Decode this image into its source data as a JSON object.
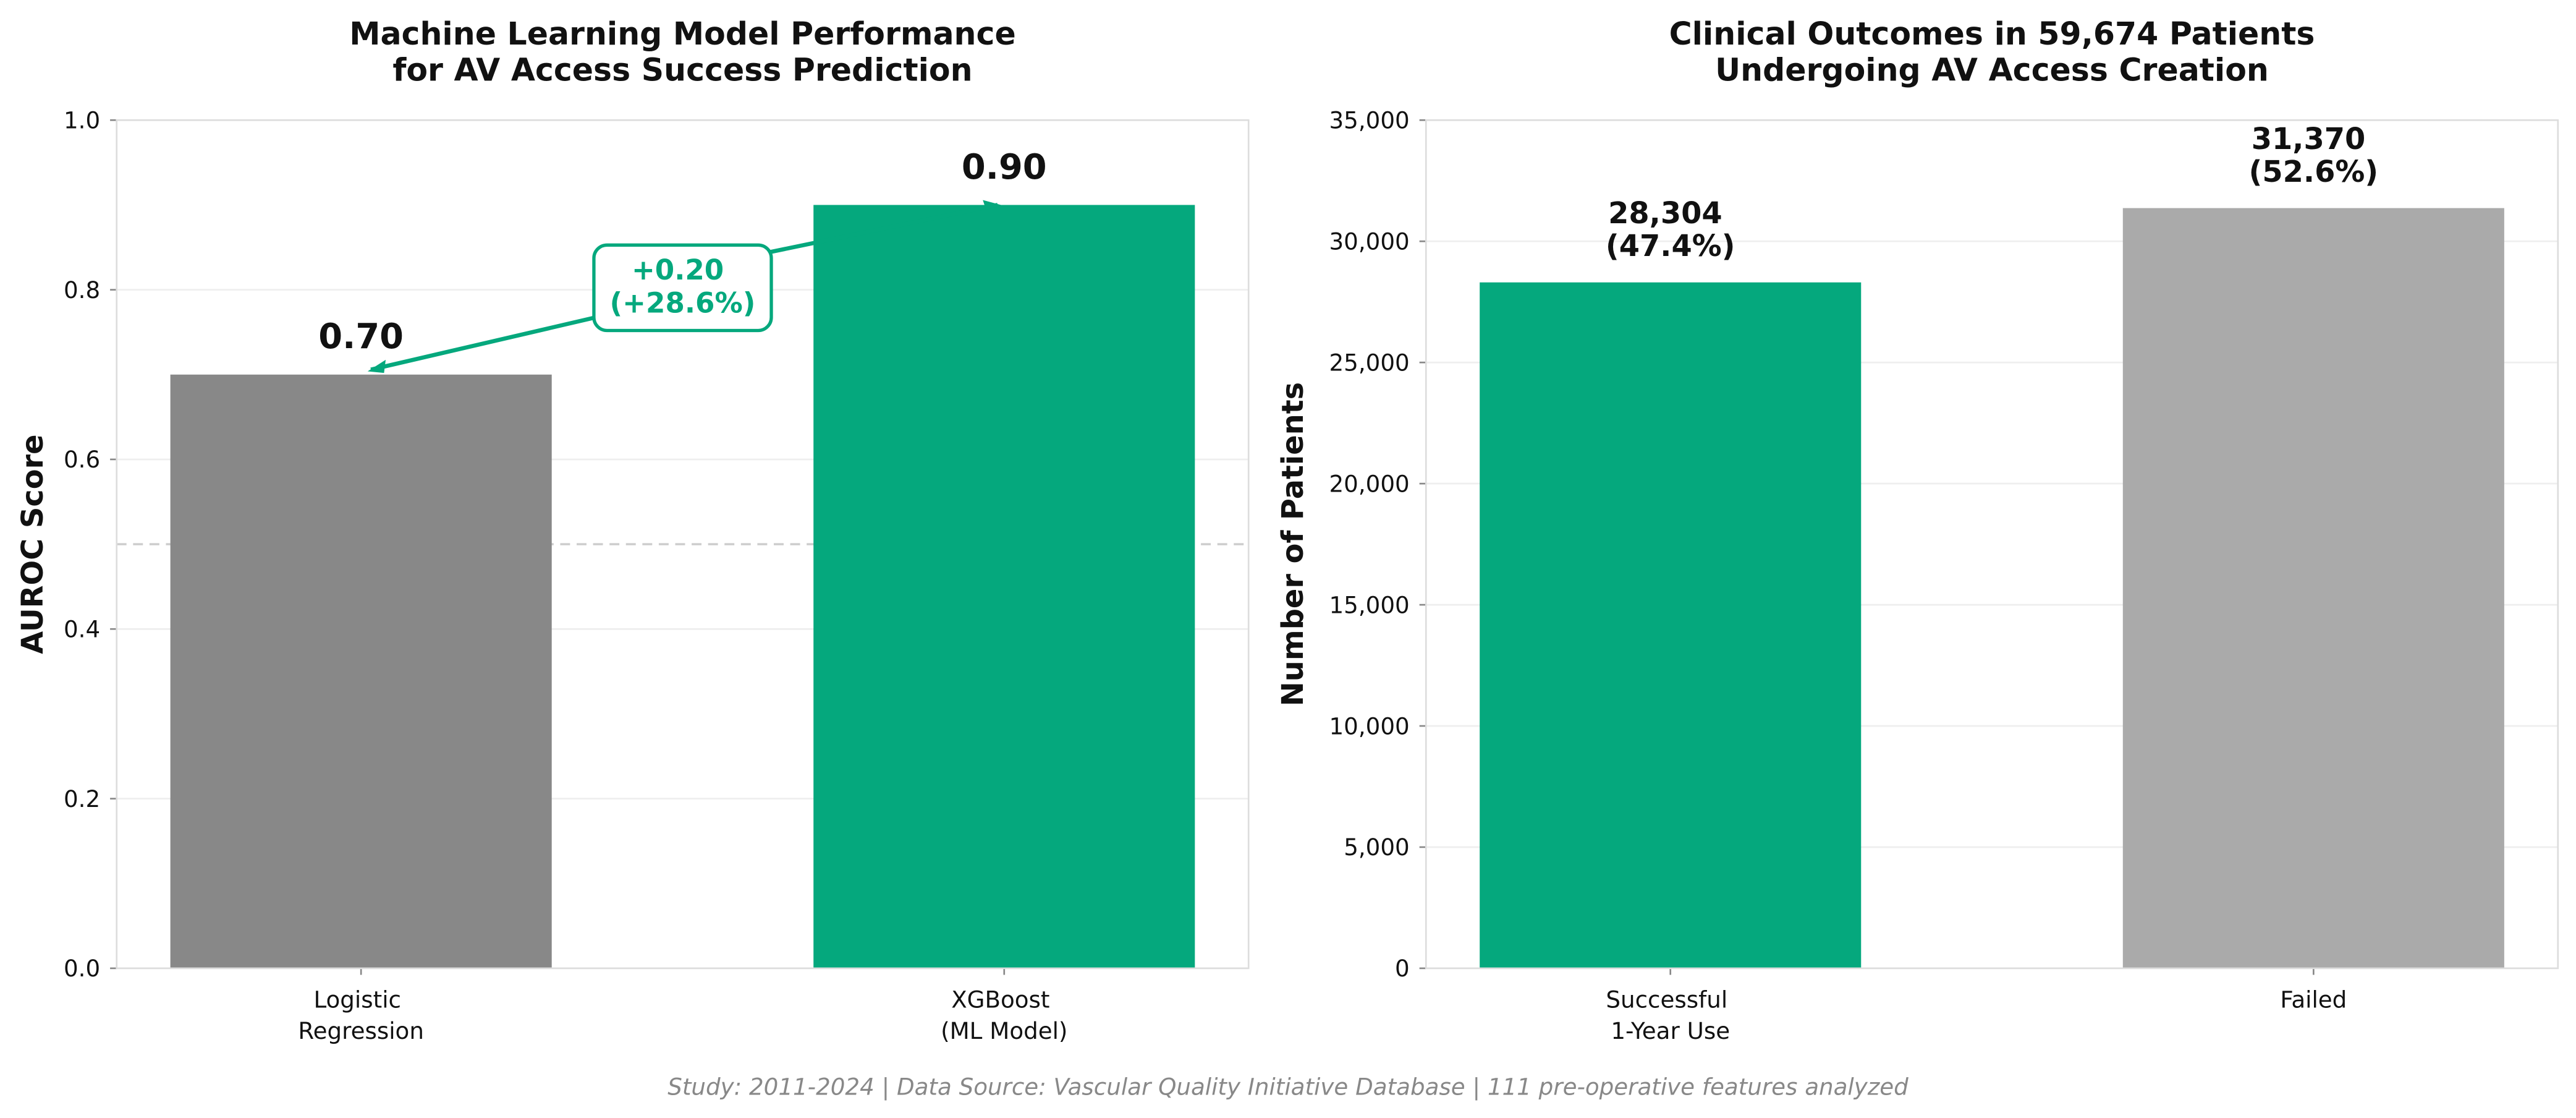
{
  "footer": "Study: 2011-2024 | Data Source: Vascular Quality Initiative Database | 111 pre-operative features analyzed",
  "chart_data": [
    {
      "type": "bar",
      "title": [
        "Machine Learning Model Performance",
        "for AV Access Success Prediction"
      ],
      "ylabel": "AUROC Score",
      "categories": [
        "Logistic\nRegression",
        "XGBoost\n(ML Model)"
      ],
      "values": [
        0.7,
        0.9
      ],
      "value_labels": [
        "0.70",
        "0.90"
      ],
      "colors": [
        "#888888",
        "#05a87d"
      ],
      "ylim": [
        0,
        1
      ],
      "yticks": [
        {
          "value": 0,
          "label": "0.0"
        },
        0.2,
        0.4,
        0.6,
        0.8,
        {
          "value": 1,
          "label": "1.0"
        }
      ],
      "reference_line": 0.5,
      "annotation": "+0.20\n(+28.6%)",
      "grid": true
    },
    {
      "type": "bar",
      "title": [
        "Clinical Outcomes in 59,674 Patients",
        "Undergoing AV Access Creation"
      ],
      "ylabel": "Number of Patients",
      "categories": [
        "Successful\n1-Year Use",
        "Failed"
      ],
      "values": [
        28304,
        31370
      ],
      "value_labels": [
        "28,304\n(47.4%)",
        "31,370\n(52.6%)"
      ],
      "colors": [
        "#05a87d",
        "#aaaaaa"
      ],
      "ylim": [
        0,
        35000
      ],
      "yticks": [
        0,
        {
          "value": 5000,
          "label": "5,000"
        },
        {
          "value": 10000,
          "label": "10,000"
        },
        {
          "value": 15000,
          "label": "15,000"
        },
        {
          "value": 20000,
          "label": "20,000"
        },
        {
          "value": 25000,
          "label": "25,000"
        },
        {
          "value": 30000,
          "label": "30,000"
        },
        {
          "value": 35000,
          "label": "35,000"
        }
      ],
      "grid": true
    }
  ]
}
